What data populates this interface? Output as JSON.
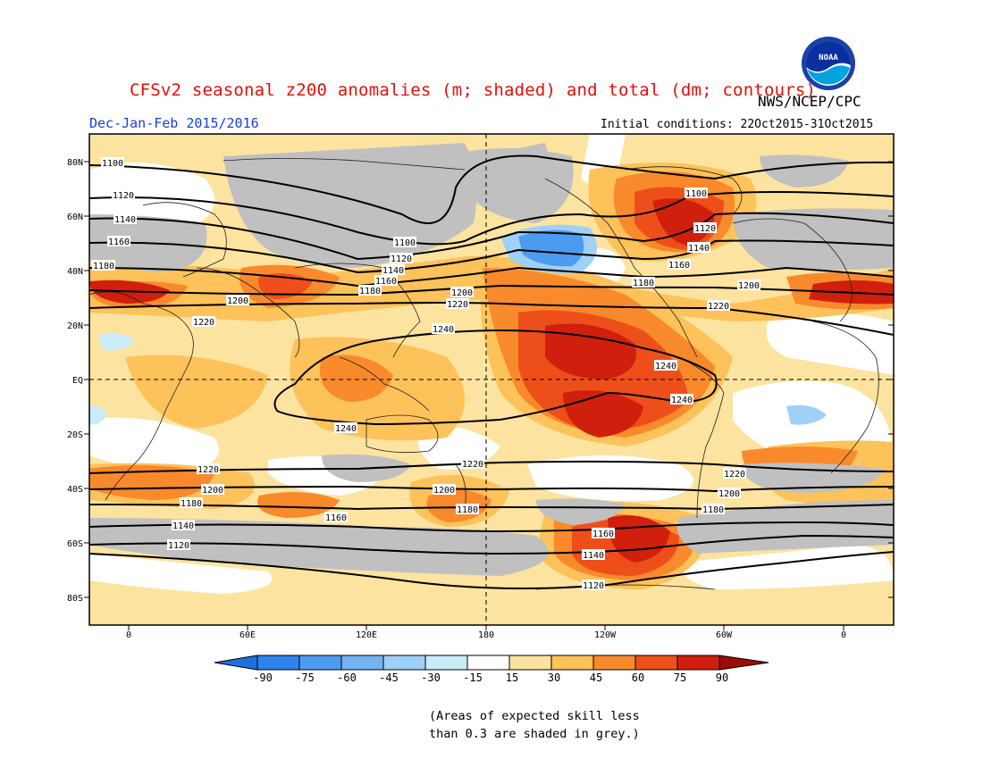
{
  "header": {
    "title": "CFSv2 seasonal z200 anomalies (m; shaded) and total (dm; contours)",
    "period": "Dec-Jan-Feb 2015/2016",
    "agency": "NWS/NCEP/CPC",
    "initial_conditions": "Initial conditions: 22Oct2015-31Oct2015",
    "logo_text": "NOAA"
  },
  "map": {
    "lat_labels": [
      "80N",
      "60N",
      "40N",
      "20N",
      "EQ",
      "20S",
      "40S",
      "60S",
      "80S"
    ],
    "lon_labels": [
      "0",
      "60E",
      "120E",
      "180",
      "120W",
      "60W",
      "0"
    ],
    "contour_labels": [
      "1100",
      "1120",
      "1140",
      "1160",
      "1180",
      "1200",
      "1220",
      "1240"
    ],
    "grey_note": "Areas of expected skill less than 0.3 are shaded in grey"
  },
  "colorbar": {
    "ticks": [
      "-90",
      "-75",
      "-60",
      "-45",
      "-30",
      "-15",
      "15",
      "30",
      "45",
      "60",
      "75",
      "90"
    ],
    "colors": [
      "#1f6fe0",
      "#2f83ea",
      "#4d9bf0",
      "#72b4f4",
      "#9fd0f7",
      "#c9ecf7",
      "#ffffff",
      "#fce3a0",
      "#fdc259",
      "#f98a2c",
      "#ee4f1a",
      "#d0200d",
      "#9c0d08"
    ]
  },
  "footnote": {
    "line1": "(Areas of expected skill less",
    "line2": "than 0.3 are shaded in grey.)"
  }
}
